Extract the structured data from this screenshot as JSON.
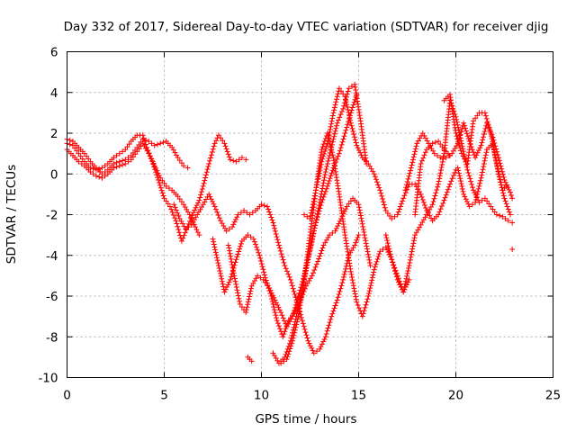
{
  "chart_data": {
    "type": "scatter",
    "title": "Day 332 of 2017, Sidereal Day-to-day VTEC variation (SDTVAR) for receiver djig",
    "xlabel": "GPS time / hours",
    "ylabel": "SDTVAR / TECUs",
    "xlim": [
      0,
      25
    ],
    "ylim": [
      -10,
      6
    ],
    "xticks": [
      "0",
      "5",
      "10",
      "15",
      "20",
      "25"
    ],
    "yticks": [
      "-10",
      "-8",
      "-6",
      "-4",
      "-2",
      "0",
      "2",
      "4",
      "6"
    ],
    "grid": true,
    "marker": "plus",
    "marker_color": "#ff0000",
    "series": [
      {
        "x": [
          0,
          0.3,
          0.6,
          0.9,
          1.2,
          1.5,
          1.8,
          2.1,
          2.4,
          2.7,
          3.0,
          3.3,
          3.6,
          3.9,
          4.1,
          4.4,
          4.7,
          5.0,
          5.3,
          5.6,
          5.9,
          6.2,
          6.5,
          6.8,
          7.0,
          7.3,
          7.6,
          7.8,
          8.1,
          8.4,
          8.7,
          9.0,
          9.2
        ],
        "y": [
          1.5,
          1.4,
          1.0,
          0.6,
          0.3,
          0.2,
          0.3,
          0.5,
          0.8,
          1.0,
          1.2,
          1.6,
          1.9,
          1.9,
          1.3,
          0.6,
          -0.3,
          -1.2,
          -1.6,
          -2.3,
          -3.3,
          -2.6,
          -1.9,
          -1.3,
          -0.6,
          0.5,
          1.5,
          1.9,
          1.5,
          0.7,
          0.6,
          0.8,
          0.7
        ]
      },
      {
        "x": [
          0,
          0.3,
          0.6,
          0.9,
          1.2,
          1.5,
          1.8,
          2.1,
          2.4,
          2.7,
          3.0,
          3.3,
          3.6,
          3.9,
          4.2,
          4.5,
          4.8,
          5.1,
          5.4,
          5.7,
          6.0,
          6.2
        ],
        "y": [
          1.7,
          1.6,
          1.3,
          1.0,
          0.6,
          0.3,
          0.0,
          0.2,
          0.5,
          0.6,
          0.7,
          0.9,
          1.3,
          1.7,
          1.6,
          1.4,
          1.5,
          1.6,
          1.3,
          0.8,
          0.4,
          0.3
        ]
      },
      {
        "x": [
          0,
          0.3,
          0.6,
          0.9,
          1.2,
          1.5,
          1.8,
          2.1,
          2.4,
          2.7,
          3.0,
          3.3,
          3.6,
          3.9,
          4.2,
          4.5,
          4.8,
          5.1,
          5.4,
          5.7,
          6.0,
          6.3,
          6.6,
          6.8
        ],
        "y": [
          1.2,
          0.9,
          0.6,
          0.4,
          0.1,
          -0.1,
          -0.2,
          0.0,
          0.3,
          0.4,
          0.5,
          0.7,
          1.1,
          1.5,
          1.0,
          0.4,
          -0.2,
          -0.6,
          -0.8,
          -1.1,
          -1.5,
          -2.0,
          -2.6,
          -3.0
        ]
      },
      {
        "x": [
          5.5,
          5.8,
          6.1,
          6.4,
          6.7,
          7.0,
          7.3,
          7.6,
          7.9,
          8.2,
          8.5,
          8.8,
          9.1,
          9.4,
          9.7,
          10.0,
          10.3,
          10.6,
          10.9,
          11.2,
          11.5,
          11.8,
          12.1,
          12.4,
          12.7,
          13.0,
          13.3,
          13.6,
          13.9,
          14.2,
          14.5,
          14.8,
          15.0
        ],
        "y": [
          -1.5,
          -2.2,
          -2.7,
          -2.5,
          -2.0,
          -1.5,
          -1.0,
          -1.6,
          -2.3,
          -2.8,
          -2.6,
          -2.0,
          -1.8,
          -2.0,
          -1.8,
          -1.5,
          -1.6,
          -2.4,
          -3.5,
          -4.5,
          -5.2,
          -6.2,
          -7.2,
          -8.2,
          -8.8,
          -8.6,
          -8.0,
          -7.0,
          -6.2,
          -5.2,
          -4.0,
          -3.5,
          -3.0
        ]
      },
      {
        "x": [
          7.5,
          7.8,
          8.1,
          8.4,
          8.7,
          9.0,
          9.3,
          9.6,
          9.9,
          10.2,
          10.5,
          10.8,
          11.1,
          11.4,
          11.7,
          12.0,
          12.3,
          12.6,
          12.9,
          13.2,
          13.5,
          13.8,
          14.1,
          14.4,
          14.7,
          15.0,
          15.3,
          15.6
        ],
        "y": [
          -3.2,
          -4.5,
          -5.8,
          -5.2,
          -4.2,
          -3.3,
          -3.0,
          -3.2,
          -4.0,
          -5.1,
          -6.0,
          -7.2,
          -8.0,
          -7.2,
          -6.8,
          -6.2,
          -5.5,
          -5.0,
          -4.3,
          -3.5,
          -3.0,
          -2.8,
          -2.2,
          -1.6,
          -1.2,
          -1.5,
          -3.0,
          -4.5
        ]
      },
      {
        "x": [
          8.3,
          8.6,
          8.9,
          9.2,
          9.5,
          9.8,
          10.1,
          10.4,
          10.7,
          11.0,
          11.3,
          11.6,
          11.9,
          12.2,
          12.5,
          12.8,
          13.1,
          13.4,
          13.7,
          14.0,
          14.3,
          14.6,
          14.9
        ],
        "y": [
          -3.5,
          -5.0,
          -6.4,
          -6.8,
          -5.5,
          -5.0,
          -5.2,
          -5.6,
          -6.2,
          -6.8,
          -7.5,
          -7.0,
          -6.0,
          -5.0,
          -3.7,
          -2.4,
          -1.4,
          -0.6,
          0.3,
          1.0,
          2.0,
          3.0,
          3.9
        ]
      },
      {
        "x": [
          10.6,
          10.9,
          11.2,
          11.5,
          11.8,
          12.1,
          12.4,
          12.7,
          13.0,
          13.3,
          13.6,
          13.9,
          14.2,
          14.5,
          14.8,
          15.1,
          15.4
        ],
        "y": [
          -8.8,
          -9.3,
          -9.0,
          -8.2,
          -7.0,
          -5.7,
          -4.2,
          -2.8,
          -1.4,
          0.1,
          1.3,
          2.5,
          3.2,
          4.2,
          4.4,
          2.6,
          0.5
        ]
      },
      {
        "x": [
          11.0,
          11.3,
          11.6,
          11.9,
          12.2,
          12.5,
          12.8,
          13.1,
          13.4,
          13.7,
          14.0,
          14.3,
          14.6,
          14.9,
          15.2,
          15.5,
          15.8,
          16.1,
          16.4,
          16.7,
          17.0,
          17.3,
          17.6,
          17.9,
          18.2,
          18.5,
          18.8,
          19.1,
          19.4,
          19.7
        ],
        "y": [
          -9.3,
          -9.1,
          -8.2,
          -7.0,
          -5.2,
          -3.0,
          -0.8,
          1.2,
          2.0,
          0.8,
          -1.0,
          -3.0,
          -4.8,
          -6.3,
          -7.0,
          -6.0,
          -4.7,
          -3.8,
          -3.6,
          -4.2,
          -5.0,
          -5.8,
          -5.2,
          -2.0,
          0.5,
          1.2,
          1.5,
          1.6,
          1.2,
          0.9
        ]
      },
      {
        "x": [
          12.2,
          12.5,
          12.8,
          13.1,
          13.4,
          13.7,
          14.0,
          14.3,
          14.6,
          14.9,
          15.2,
          15.5,
          15.8,
          16.1,
          16.4,
          16.7,
          17.0,
          17.3,
          17.6,
          17.9,
          18.2,
          18.5,
          18.8,
          19.1,
          19.4,
          19.7,
          20.0
        ],
        "y": [
          -2.0,
          -2.2,
          -0.8,
          0.6,
          1.5,
          3.0,
          4.2,
          3.8,
          2.5,
          1.4,
          0.8,
          0.5,
          0.0,
          -0.8,
          -1.8,
          -2.2,
          -2.0,
          -1.2,
          -0.5,
          -0.5,
          -1.0,
          -1.8,
          -2.3,
          -2.0,
          -1.3,
          -0.5,
          0.2
        ]
      },
      {
        "x": [
          16.4,
          16.7,
          17.0,
          17.3,
          17.6,
          17.9,
          18.2,
          18.5,
          18.8,
          19.1,
          19.4,
          19.7,
          20.0,
          20.3,
          20.6,
          20.9,
          21.2,
          21.5,
          21.8,
          22.1,
          22.4,
          22.7,
          22.9
        ],
        "y": [
          -3.0,
          -4.2,
          -5.2,
          -5.8,
          -4.5,
          -3.0,
          -2.5,
          -2.0,
          -1.5,
          -0.5,
          1.0,
          3.6,
          2.8,
          1.5,
          0.2,
          -0.8,
          -1.4,
          -1.2,
          -1.6,
          -2.0,
          -2.1,
          -2.3,
          -2.4
        ]
      },
      {
        "x": [
          17.4,
          17.7,
          18.0,
          18.3,
          18.6,
          18.9,
          19.2,
          19.5,
          19.8,
          20.1,
          20.4,
          20.7,
          21.0,
          21.3,
          21.6,
          21.9,
          22.2,
          22.5,
          22.8,
          22.9
        ],
        "y": [
          -0.8,
          0.3,
          1.5,
          2.0,
          1.5,
          1.0,
          0.8,
          0.8,
          1.0,
          1.5,
          2.5,
          1.6,
          0.8,
          1.4,
          2.5,
          1.8,
          0.8,
          -0.3,
          -0.9,
          -1.2
        ]
      },
      {
        "x": [
          19.4,
          19.7,
          20.0,
          20.3,
          20.6,
          20.9,
          21.2,
          21.5,
          21.8,
          22.1,
          22.4,
          22.6
        ],
        "y": [
          3.6,
          3.9,
          2.0,
          1.0,
          0.5,
          2.6,
          3.0,
          3.0,
          2.0,
          0.5,
          -0.8,
          -0.6
        ]
      },
      {
        "x": [
          20.1,
          20.4,
          20.7,
          21.0,
          21.3,
          21.6,
          21.9,
          22.2,
          22.5,
          22.8
        ],
        "y": [
          0.3,
          -1.0,
          -1.6,
          -1.4,
          -0.2,
          1.2,
          1.5,
          0.0,
          -1.2,
          -2.0
        ]
      },
      {
        "x": [
          9.3,
          9.4,
          9.5,
          22.9
        ],
        "y": [
          -9.0,
          -9.1,
          -9.2,
          -3.7
        ]
      }
    ]
  }
}
